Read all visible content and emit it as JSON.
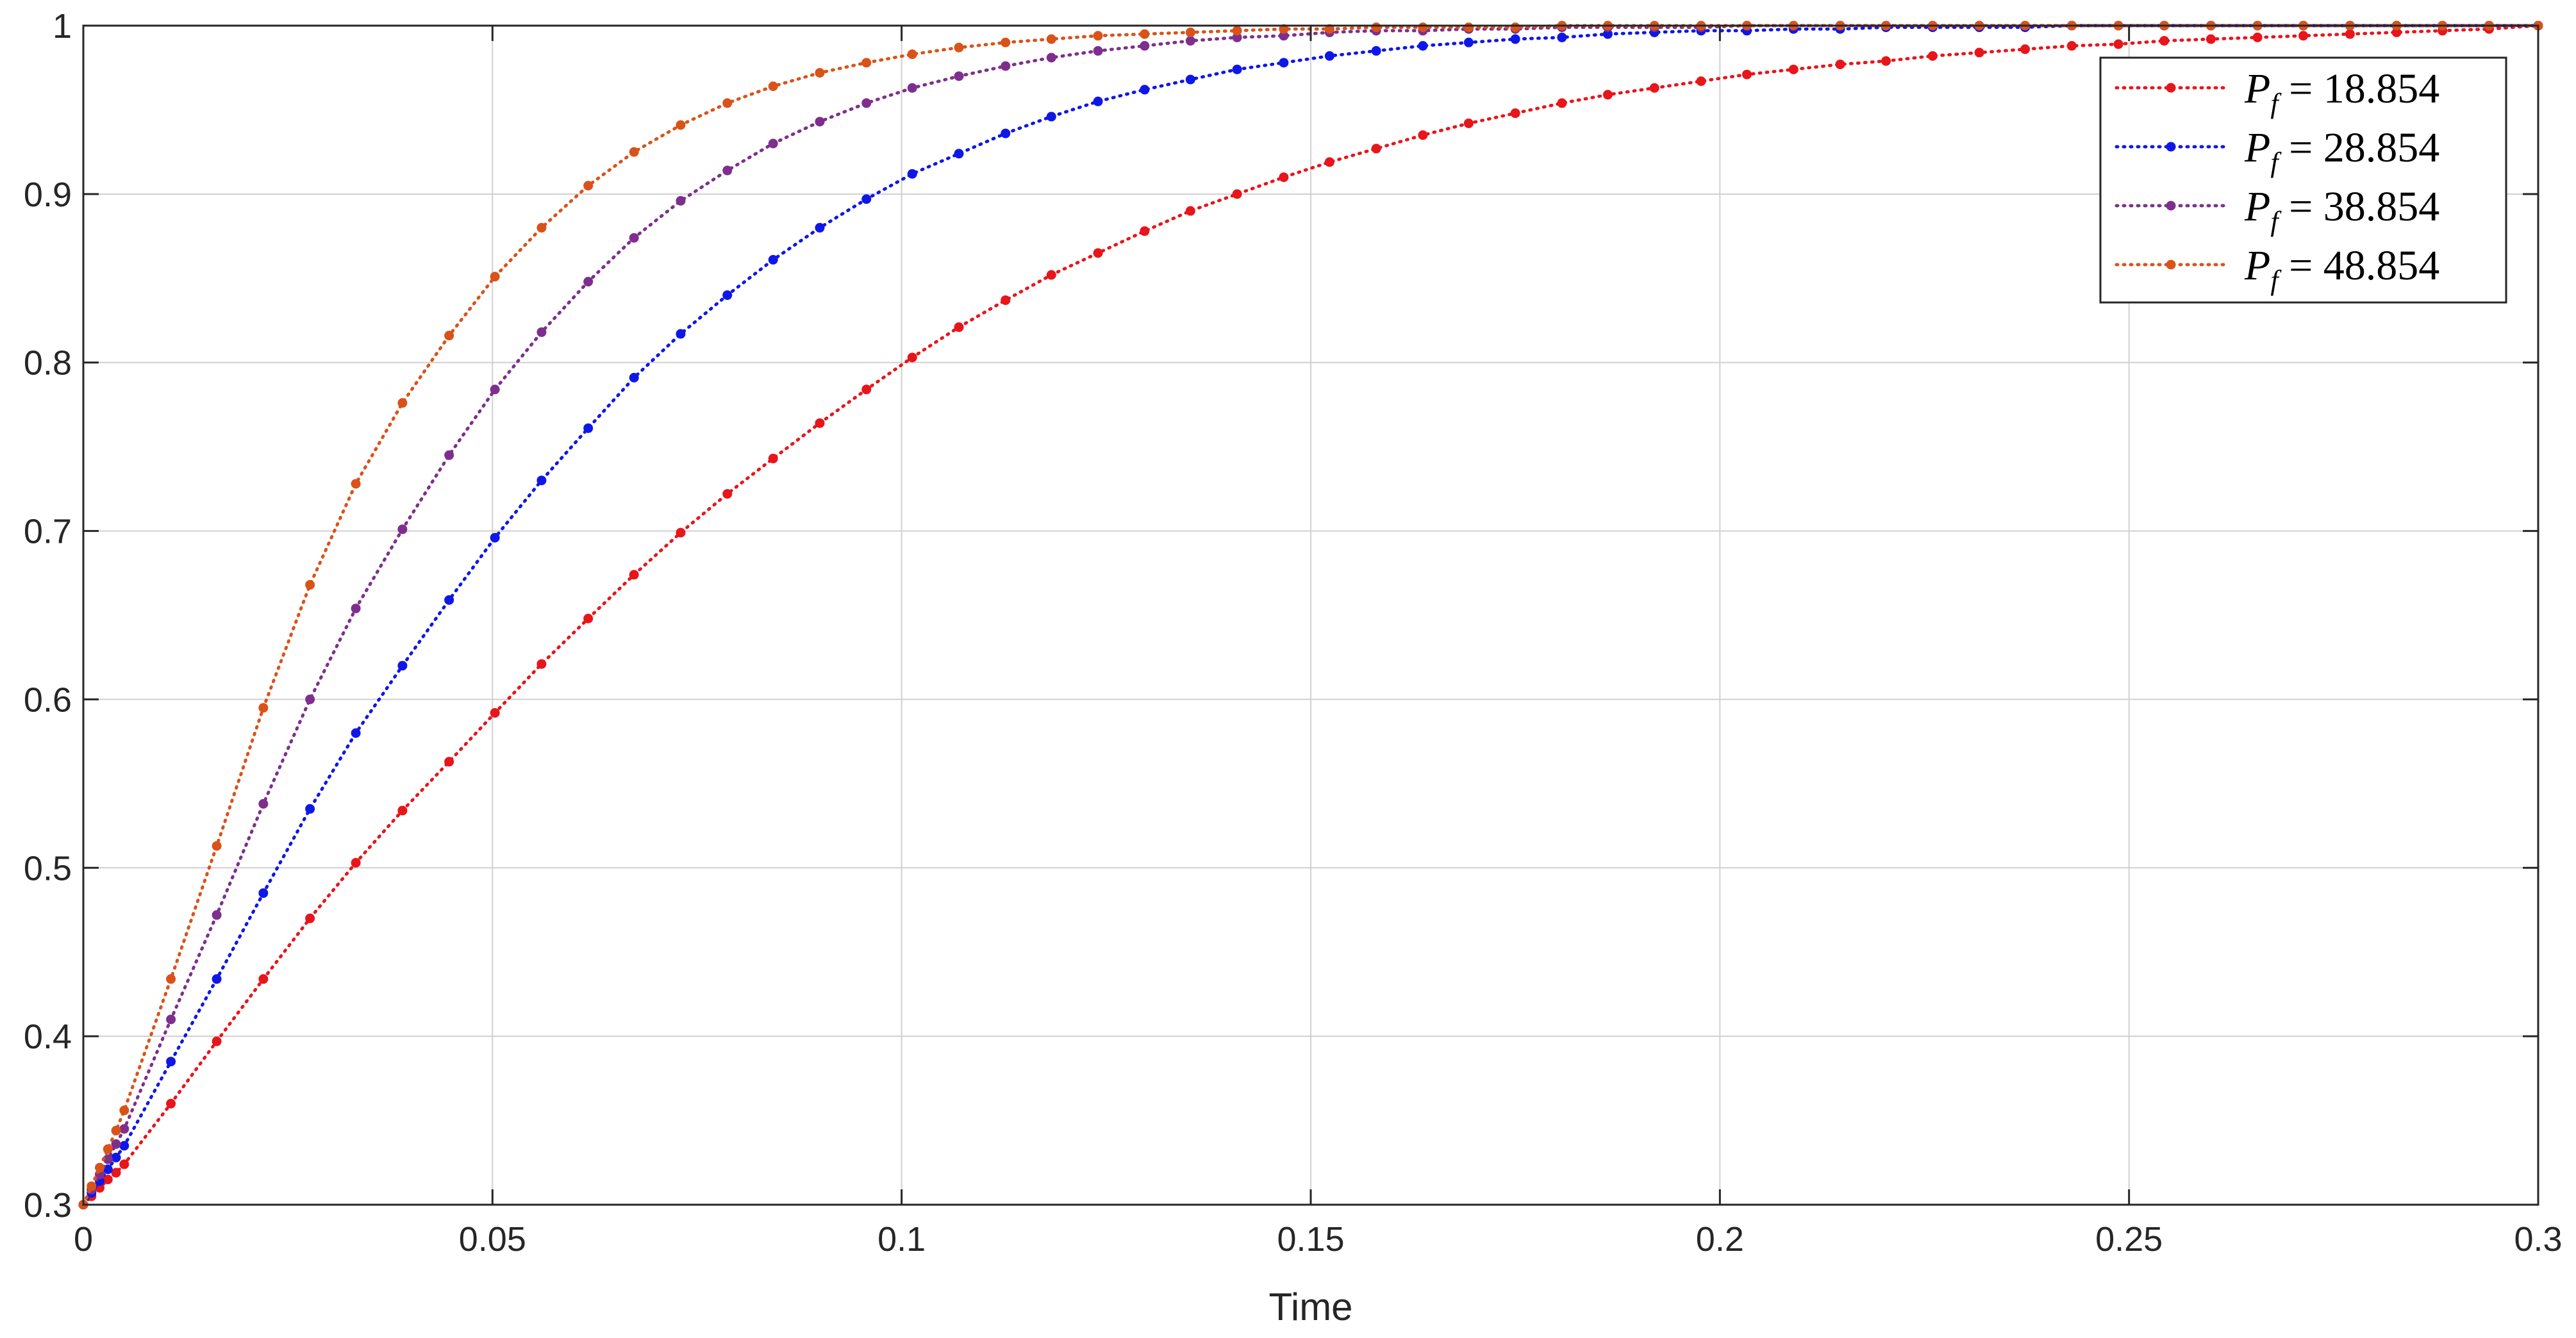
{
  "chart_data": {
    "type": "line",
    "title": "",
    "xlabel": "Time",
    "ylabel": "",
    "xlim": [
      0,
      0.3
    ],
    "ylim": [
      0.3,
      1
    ],
    "xticks": [
      0,
      0.05,
      0.1,
      0.15,
      0.2,
      0.25,
      0.3
    ],
    "yticks": [
      0.3,
      0.4,
      0.5,
      0.6,
      0.7,
      0.8,
      0.9,
      1
    ],
    "xtick_labels": [
      "0",
      "0.05",
      "0.1",
      "0.15",
      "0.2",
      "0.25",
      "0.3"
    ],
    "ytick_labels": [
      "0.3",
      "0.4",
      "0.5",
      "0.6",
      "0.7",
      "0.8",
      "0.9",
      "1"
    ],
    "grid": true,
    "legend_position": "top-right",
    "line_style": "dotted",
    "marker": "dot",
    "x": [
      0,
      0.001,
      0.002,
      0.003,
      0.004,
      0.005,
      0.0107,
      0.0163,
      0.022,
      0.0277,
      0.0333,
      0.039,
      0.0447,
      0.0503,
      0.056,
      0.0617,
      0.0673,
      0.073,
      0.0787,
      0.0843,
      0.09,
      0.0957,
      0.1013,
      0.107,
      0.1127,
      0.1183,
      0.124,
      0.1297,
      0.1353,
      0.141,
      0.1467,
      0.1523,
      0.158,
      0.1637,
      0.1693,
      0.175,
      0.1807,
      0.1863,
      0.192,
      0.1977,
      0.2033,
      0.209,
      0.2147,
      0.2203,
      0.226,
      0.2317,
      0.2373,
      0.243,
      0.2487,
      0.2543,
      0.26,
      0.2657,
      0.2713,
      0.277,
      0.2827,
      0.2883,
      0.294,
      0.3
    ],
    "series": [
      {
        "name": "P_f = 18.854",
        "color": "#e8151b",
        "y": [
          0.3,
          0.305,
          0.31,
          0.315,
          0.319,
          0.324,
          0.36,
          0.397,
          0.434,
          0.47,
          0.503,
          0.534,
          0.563,
          0.592,
          0.621,
          0.648,
          0.674,
          0.699,
          0.722,
          0.743,
          0.764,
          0.784,
          0.803,
          0.821,
          0.837,
          0.852,
          0.865,
          0.878,
          0.89,
          0.9,
          0.91,
          0.919,
          0.927,
          0.935,
          0.942,
          0.948,
          0.954,
          0.959,
          0.963,
          0.967,
          0.971,
          0.974,
          0.977,
          0.979,
          0.982,
          0.984,
          0.986,
          0.988,
          0.989,
          0.991,
          0.992,
          0.993,
          0.994,
          0.995,
          0.996,
          0.997,
          0.998,
          1.0
        ]
      },
      {
        "name": "P_f = 28.854",
        "color": "#0f17e8",
        "y": [
          0.3,
          0.307,
          0.314,
          0.321,
          0.328,
          0.335,
          0.385,
          0.434,
          0.485,
          0.535,
          0.58,
          0.62,
          0.659,
          0.696,
          0.73,
          0.761,
          0.791,
          0.817,
          0.84,
          0.861,
          0.88,
          0.897,
          0.912,
          0.924,
          0.936,
          0.946,
          0.955,
          0.962,
          0.968,
          0.974,
          0.978,
          0.982,
          0.985,
          0.988,
          0.99,
          0.992,
          0.993,
          0.995,
          0.996,
          0.997,
          0.997,
          0.998,
          0.998,
          0.999,
          0.999,
          0.999,
          0.999,
          1.0,
          1.0,
          1.0,
          1.0,
          1.0,
          1.0,
          1.0,
          1.0,
          1.0,
          1.0,
          1.0
        ]
      },
      {
        "name": "P_f = 38.854",
        "color": "#7e2f8e",
        "y": [
          0.3,
          0.309,
          0.318,
          0.327,
          0.336,
          0.345,
          0.41,
          0.472,
          0.538,
          0.6,
          0.654,
          0.701,
          0.745,
          0.784,
          0.818,
          0.848,
          0.874,
          0.896,
          0.914,
          0.93,
          0.943,
          0.954,
          0.963,
          0.97,
          0.976,
          0.981,
          0.985,
          0.988,
          0.991,
          0.993,
          0.994,
          0.996,
          0.997,
          0.997,
          0.998,
          0.998,
          0.999,
          0.999,
          0.999,
          0.999,
          1.0,
          1.0,
          1.0,
          1.0,
          1.0,
          1.0,
          1.0,
          1.0,
          1.0,
          1.0,
          1.0,
          1.0,
          1.0,
          1.0,
          1.0,
          1.0,
          1.0,
          1.0
        ]
      },
      {
        "name": "P_f = 48.854",
        "color": "#d95319",
        "y": [
          0.3,
          0.311,
          0.322,
          0.333,
          0.344,
          0.356,
          0.434,
          0.513,
          0.595,
          0.668,
          0.728,
          0.776,
          0.816,
          0.851,
          0.88,
          0.905,
          0.925,
          0.941,
          0.954,
          0.964,
          0.972,
          0.978,
          0.983,
          0.987,
          0.99,
          0.992,
          0.994,
          0.995,
          0.996,
          0.997,
          0.998,
          0.998,
          0.999,
          0.999,
          0.999,
          0.999,
          1.0,
          1.0,
          1.0,
          1.0,
          1.0,
          1.0,
          1.0,
          1.0,
          1.0,
          1.0,
          1.0,
          1.0,
          1.0,
          1.0,
          1.0,
          1.0,
          1.0,
          1.0,
          1.0,
          1.0,
          1.0,
          1.0
        ]
      }
    ],
    "legend": [
      {
        "symbol": "P",
        "subscript": "f",
        "operator": "=",
        "value": "18.854"
      },
      {
        "symbol": "P",
        "subscript": "f",
        "operator": "=",
        "value": "28.854"
      },
      {
        "symbol": "P",
        "subscript": "f",
        "operator": "=",
        "value": "38.854"
      },
      {
        "symbol": "P",
        "subscript": "f",
        "operator": "=",
        "value": "48.854"
      }
    ]
  }
}
